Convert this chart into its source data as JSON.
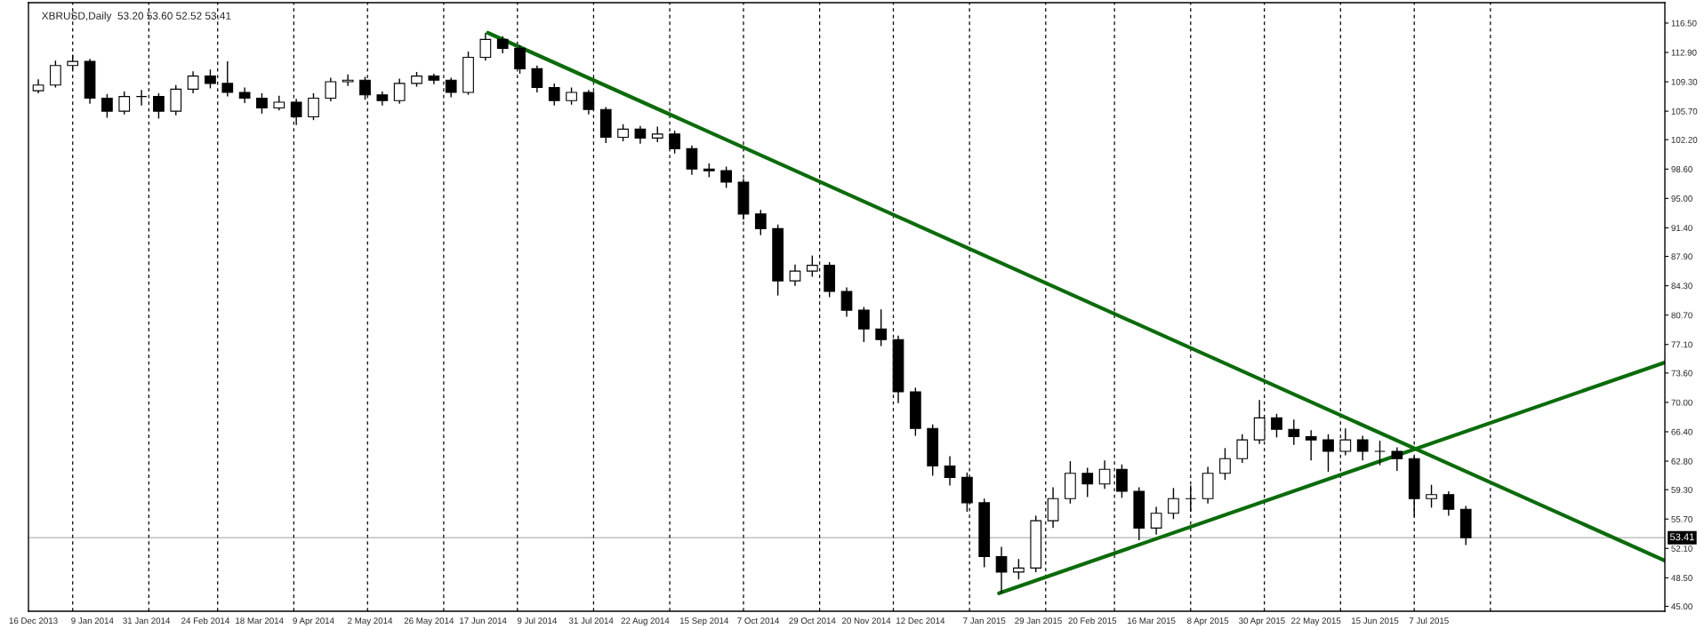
{
  "chart_data": {
    "type": "candlestick",
    "title": "XBRUSD,Daily  53.20 53.60 52.52 53.41",
    "x": [
      "2013-12-18",
      "2013-12-25",
      "2014-01-01",
      "2014-01-08",
      "2014-01-15",
      "2014-01-22",
      "2014-01-29",
      "2014-02-05",
      "2014-02-12",
      "2014-02-19",
      "2014-02-26",
      "2014-03-05",
      "2014-03-12",
      "2014-03-19",
      "2014-03-26",
      "2014-04-02",
      "2014-04-09",
      "2014-04-16",
      "2014-04-23",
      "2014-04-30",
      "2014-05-07",
      "2014-05-14",
      "2014-05-21",
      "2014-05-28",
      "2014-06-04",
      "2014-06-11",
      "2014-06-18",
      "2014-06-25",
      "2014-07-02",
      "2014-07-09",
      "2014-07-16",
      "2014-07-23",
      "2014-07-30",
      "2014-08-06",
      "2014-08-13",
      "2014-08-20",
      "2014-08-27",
      "2014-09-03",
      "2014-09-10",
      "2014-09-17",
      "2014-09-24",
      "2014-10-01",
      "2014-10-08",
      "2014-10-15",
      "2014-10-22",
      "2014-10-29",
      "2014-11-05",
      "2014-11-12",
      "2014-11-19",
      "2014-11-26",
      "2014-12-03",
      "2014-12-10",
      "2014-12-17",
      "2014-12-24",
      "2014-12-31",
      "2015-01-07",
      "2015-01-14",
      "2015-01-21",
      "2015-01-28",
      "2015-02-04",
      "2015-02-11",
      "2015-02-18",
      "2015-02-25",
      "2015-03-04",
      "2015-03-11",
      "2015-03-18",
      "2015-03-25",
      "2015-04-01",
      "2015-04-08",
      "2015-04-15",
      "2015-04-22",
      "2015-04-29",
      "2015-05-06",
      "2015-05-13",
      "2015-05-20",
      "2015-05-27",
      "2015-06-03",
      "2015-06-10",
      "2015-06-17",
      "2015-06-24",
      "2015-07-01",
      "2015-07-08",
      "2015-07-15",
      "2015-07-22"
    ],
    "ohlc": [
      [
        108.2,
        109.6,
        107.9,
        108.9
      ],
      [
        108.9,
        111.9,
        108.6,
        111.3
      ],
      [
        111.3,
        112.6,
        110.8,
        111.8
      ],
      [
        111.8,
        112.1,
        106.6,
        107.3
      ],
      [
        107.3,
        107.8,
        104.9,
        105.7
      ],
      [
        105.7,
        108.1,
        105.3,
        107.5
      ],
      [
        107.5,
        108.3,
        106.4,
        107.5
      ],
      [
        107.5,
        107.9,
        104.8,
        105.7
      ],
      [
        105.7,
        108.9,
        105.2,
        108.4
      ],
      [
        108.4,
        110.6,
        107.9,
        110.0
      ],
      [
        110.0,
        110.8,
        108.5,
        109.1
      ],
      [
        109.1,
        111.8,
        107.5,
        108.0
      ],
      [
        108.0,
        108.6,
        106.7,
        107.3
      ],
      [
        107.3,
        107.9,
        105.4,
        106.1
      ],
      [
        106.1,
        107.6,
        105.8,
        106.8
      ],
      [
        106.8,
        107.2,
        104.0,
        105.0
      ],
      [
        105.0,
        107.9,
        104.6,
        107.3
      ],
      [
        107.3,
        109.8,
        106.9,
        109.3
      ],
      [
        109.3,
        110.2,
        108.8,
        109.5
      ],
      [
        109.5,
        109.9,
        107.1,
        107.7
      ],
      [
        107.7,
        108.1,
        106.4,
        107.0
      ],
      [
        107.0,
        109.7,
        106.6,
        109.1
      ],
      [
        109.1,
        110.5,
        108.7,
        110.0
      ],
      [
        110.0,
        110.3,
        109.0,
        109.5
      ],
      [
        109.5,
        109.8,
        107.4,
        108.0
      ],
      [
        108.0,
        113.0,
        107.7,
        112.3
      ],
      [
        112.3,
        115.3,
        111.9,
        114.5
      ],
      [
        114.5,
        114.9,
        112.8,
        113.4
      ],
      [
        113.4,
        113.8,
        110.3,
        110.9
      ],
      [
        110.9,
        111.3,
        108.0,
        108.6
      ],
      [
        108.6,
        109.1,
        106.4,
        107.0
      ],
      [
        107.0,
        108.6,
        106.5,
        108.0
      ],
      [
        108.0,
        108.3,
        105.3,
        105.9
      ],
      [
        105.9,
        106.2,
        101.8,
        102.5
      ],
      [
        102.5,
        104.1,
        102.0,
        103.5
      ],
      [
        103.5,
        103.9,
        101.7,
        102.4
      ],
      [
        102.4,
        103.8,
        101.9,
        102.9
      ],
      [
        102.9,
        103.3,
        100.5,
        101.1
      ],
      [
        101.1,
        101.5,
        97.9,
        98.6
      ],
      [
        98.6,
        99.3,
        97.6,
        98.4
      ],
      [
        98.4,
        98.9,
        96.3,
        97.0
      ],
      [
        97.0,
        97.4,
        92.4,
        93.1
      ],
      [
        93.1,
        93.6,
        90.5,
        91.3
      ],
      [
        91.3,
        91.8,
        83.1,
        84.9
      ],
      [
        84.9,
        86.9,
        84.3,
        86.1
      ],
      [
        86.1,
        88.0,
        85.4,
        86.8
      ],
      [
        86.8,
        87.2,
        82.9,
        83.6
      ],
      [
        83.6,
        84.1,
        80.5,
        81.3
      ],
      [
        81.3,
        81.7,
        77.4,
        79.0
      ],
      [
        79.0,
        81.4,
        76.9,
        77.7
      ],
      [
        77.7,
        78.2,
        69.9,
        71.3
      ],
      [
        71.3,
        71.8,
        65.9,
        66.8
      ],
      [
        66.8,
        67.3,
        61.0,
        62.2
      ],
      [
        62.2,
        63.4,
        59.8,
        60.8
      ],
      [
        60.8,
        61.4,
        56.6,
        57.7
      ],
      [
        57.7,
        58.2,
        49.8,
        51.1
      ],
      [
        51.1,
        52.3,
        46.6,
        49.2
      ],
      [
        49.2,
        50.8,
        48.3,
        49.7
      ],
      [
        49.7,
        56.1,
        49.2,
        55.5
      ],
      [
        55.5,
        59.6,
        54.6,
        58.2
      ],
      [
        58.2,
        62.8,
        57.6,
        61.3
      ],
      [
        61.3,
        62.0,
        58.4,
        60.0
      ],
      [
        60.0,
        62.9,
        59.4,
        61.8
      ],
      [
        61.8,
        62.4,
        58.3,
        59.1
      ],
      [
        59.1,
        59.6,
        53.1,
        54.6
      ],
      [
        54.6,
        57.2,
        53.8,
        56.4
      ],
      [
        56.4,
        59.5,
        55.7,
        58.2
      ],
      [
        58.2,
        59.8,
        56.6,
        58.2
      ],
      [
        58.2,
        62.1,
        57.6,
        61.3
      ],
      [
        61.3,
        64.4,
        60.5,
        63.1
      ],
      [
        63.1,
        66.1,
        62.6,
        65.4
      ],
      [
        65.4,
        70.3,
        64.9,
        68.1
      ],
      [
        68.1,
        68.6,
        65.7,
        66.7
      ],
      [
        66.7,
        67.9,
        64.8,
        65.8
      ],
      [
        65.8,
        66.6,
        62.9,
        65.4
      ],
      [
        65.4,
        66.1,
        61.5,
        64.0
      ],
      [
        64.0,
        66.8,
        63.5,
        65.4
      ],
      [
        65.4,
        65.9,
        62.9,
        64.0
      ],
      [
        64.0,
        65.3,
        62.3,
        64.0
      ],
      [
        64.0,
        64.5,
        61.6,
        63.1
      ],
      [
        63.1,
        63.4,
        56.0,
        58.2
      ],
      [
        58.2,
        59.9,
        57.1,
        58.7
      ],
      [
        58.7,
        59.1,
        56.1,
        56.9
      ],
      [
        56.9,
        57.3,
        52.52,
        53.41
      ]
    ],
    "series": [
      {
        "type": "line",
        "color": "#0b6b0b",
        "x": [
          "2014-06-19",
          "2015-10-11"
        ],
        "values": [
          115.3,
          50.6
        ]
      },
      {
        "type": "line",
        "color": "#0b6b0b",
        "x": [
          "2015-01-13",
          "2015-10-11"
        ],
        "values": [
          46.6,
          74.9
        ]
      }
    ],
    "xlim": [
      "2013-12-14",
      "2015-10-11"
    ],
    "xticks": [
      {
        "value": "2013-12-16",
        "label": "16 Dec 2013"
      },
      {
        "value": "2014-01-09",
        "label": "9 Jan 2014"
      },
      {
        "value": "2014-01-31",
        "label": "31 Jan 2014"
      },
      {
        "value": "2014-02-24",
        "label": "24 Feb 2014"
      },
      {
        "value": "2014-03-18",
        "label": "18 Mar 2014"
      },
      {
        "value": "2014-04-09",
        "label": "9 Apr 2014"
      },
      {
        "value": "2014-05-02",
        "label": "2 May 2014"
      },
      {
        "value": "2014-05-26",
        "label": "26 May 2014"
      },
      {
        "value": "2014-06-17",
        "label": "17 Jun 2014"
      },
      {
        "value": "2014-07-09",
        "label": "9 Jul 2014"
      },
      {
        "value": "2014-07-31",
        "label": "31 Jul 2014"
      },
      {
        "value": "2014-08-22",
        "label": "22 Aug 2014"
      },
      {
        "value": "2014-09-15",
        "label": "15 Sep 2014"
      },
      {
        "value": "2014-10-07",
        "label": "7 Oct 2014"
      },
      {
        "value": "2014-10-29",
        "label": "29 Oct 2014"
      },
      {
        "value": "2014-11-20",
        "label": "20 Nov 2014"
      },
      {
        "value": "2014-12-12",
        "label": "12 Dec 2014"
      },
      {
        "value": "2015-01-07",
        "label": "7 Jan 2015"
      },
      {
        "value": "2015-01-29",
        "label": "29 Jan 2015"
      },
      {
        "value": "2015-02-20",
        "label": "20 Feb 2015"
      },
      {
        "value": "2015-03-16",
        "label": "16 Mar 2015"
      },
      {
        "value": "2015-04-08",
        "label": "8 Apr 2015"
      },
      {
        "value": "2015-04-30",
        "label": "30 Apr 2015"
      },
      {
        "value": "2015-05-22",
        "label": "22 May 2015"
      },
      {
        "value": "2015-06-15",
        "label": "15 Jun 2015"
      },
      {
        "value": "2015-07-07",
        "label": "7 Jul 2015"
      }
    ],
    "ylim": [
      44.4,
      119.0
    ],
    "yticks": [
      {
        "value": 45.0,
        "label": "45.00"
      },
      {
        "value": 48.5,
        "label": "48.50"
      },
      {
        "value": 52.1,
        "label": "52.10"
      },
      {
        "value": 55.7,
        "label": "55.70"
      },
      {
        "value": 59.3,
        "label": "59.30"
      },
      {
        "value": 62.8,
        "label": "62.80"
      },
      {
        "value": 66.4,
        "label": "66.40"
      },
      {
        "value": 70.0,
        "label": "70.00"
      },
      {
        "value": 73.6,
        "label": "73.60"
      },
      {
        "value": 77.1,
        "label": "77.10"
      },
      {
        "value": 80.7,
        "label": "80.70"
      },
      {
        "value": 84.3,
        "label": "84.30"
      },
      {
        "value": 87.9,
        "label": "87.90"
      },
      {
        "value": 91.4,
        "label": "91.40"
      },
      {
        "value": 95.0,
        "label": "95.00"
      },
      {
        "value": 98.6,
        "label": "98.60"
      },
      {
        "value": 102.2,
        "label": "102.20"
      },
      {
        "value": 105.7,
        "label": "105.70"
      },
      {
        "value": 109.3,
        "label": "109.30"
      },
      {
        "value": 112.9,
        "label": "112.90"
      },
      {
        "value": 116.5,
        "label": "116.50"
      }
    ],
    "ref_lines": [
      {
        "axis": "y",
        "value": 53.41,
        "label": "53.41",
        "color": "#c0c0c0",
        "line_style": "solid"
      },
      {
        "axis": "x",
        "value": "2014-01-01",
        "line_style": "dashed",
        "color": "#000000"
      },
      {
        "axis": "x",
        "value": "2014-02-01",
        "line_style": "dashed",
        "color": "#000000"
      },
      {
        "axis": "x",
        "value": "2014-03-01",
        "line_style": "dashed",
        "color": "#000000"
      },
      {
        "axis": "x",
        "value": "2014-04-01",
        "line_style": "dashed",
        "color": "#000000"
      },
      {
        "axis": "x",
        "value": "2014-05-01",
        "line_style": "dashed",
        "color": "#000000"
      },
      {
        "axis": "x",
        "value": "2014-06-01",
        "line_style": "dashed",
        "color": "#000000"
      },
      {
        "axis": "x",
        "value": "2014-07-01",
        "line_style": "dashed",
        "color": "#000000"
      },
      {
        "axis": "x",
        "value": "2014-08-01",
        "line_style": "dashed",
        "color": "#000000"
      },
      {
        "axis": "x",
        "value": "2014-09-01",
        "line_style": "dashed",
        "color": "#000000"
      },
      {
        "axis": "x",
        "value": "2014-10-01",
        "line_style": "dashed",
        "color": "#000000"
      },
      {
        "axis": "x",
        "value": "2014-11-01",
        "line_style": "dashed",
        "color": "#000000"
      },
      {
        "axis": "x",
        "value": "2014-12-01",
        "line_style": "dashed",
        "color": "#000000"
      },
      {
        "axis": "x",
        "value": "2015-01-01",
        "line_style": "dashed",
        "color": "#000000"
      },
      {
        "axis": "x",
        "value": "2015-02-01",
        "line_style": "dashed",
        "color": "#000000"
      },
      {
        "axis": "x",
        "value": "2015-03-01",
        "line_style": "dashed",
        "color": "#000000"
      },
      {
        "axis": "x",
        "value": "2015-04-01",
        "line_style": "dashed",
        "color": "#000000"
      },
      {
        "axis": "x",
        "value": "2015-05-01",
        "line_style": "dashed",
        "color": "#000000"
      },
      {
        "axis": "x",
        "value": "2015-06-01",
        "line_style": "dashed",
        "color": "#000000"
      },
      {
        "axis": "x",
        "value": "2015-07-01",
        "line_style": "dashed",
        "color": "#000000"
      },
      {
        "axis": "x",
        "value": "2015-08-01",
        "line_style": "dashed",
        "color": "#000000"
      }
    ]
  }
}
